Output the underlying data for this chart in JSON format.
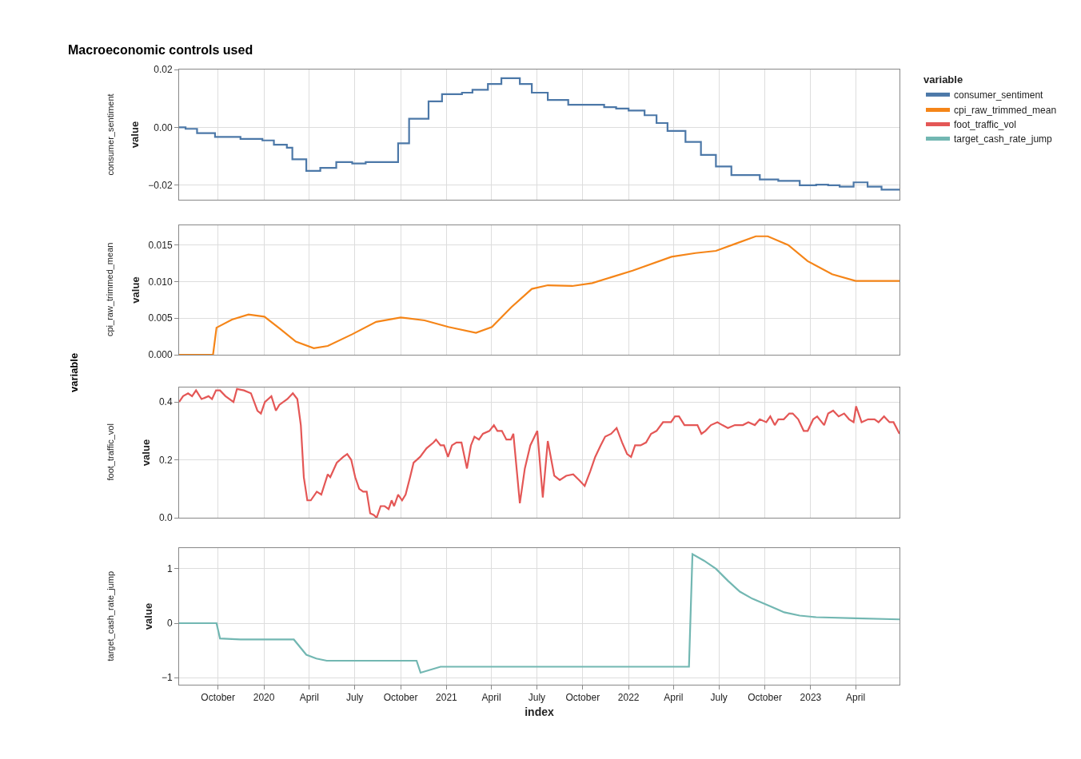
{
  "chart_data": [
    {
      "type": "line",
      "title": "Macroeconomic controls used",
      "ylabel": "value",
      "legend_title": "variable",
      "annotations": [
        "variable"
      ],
      "legend": "top right",
      "grid": true,
      "tick_labels": "y",
      "xlim": [
        "2019-07-15",
        "2023-06-28"
      ],
      "xticks": [
        {
          "value": "2019-10-01",
          "label": null
        },
        {
          "value": "2020-01-01",
          "label": null
        },
        {
          "value": "2020-04-01",
          "label": null
        },
        {
          "value": "2020-07-01",
          "label": null
        },
        {
          "value": "2020-10-01",
          "label": null
        },
        {
          "value": "2021-01-01",
          "label": null
        },
        {
          "value": "2021-04-01",
          "label": null
        },
        {
          "value": "2021-07-01",
          "label": null
        },
        {
          "value": "2021-10-01",
          "label": null
        },
        {
          "value": "2022-01-01",
          "label": null
        },
        {
          "value": "2022-04-01",
          "label": null
        },
        {
          "value": "2022-07-01",
          "label": null
        },
        {
          "value": "2022-10-01",
          "label": null
        },
        {
          "value": "2023-01-01",
          "label": null
        },
        {
          "value": "2023-04-01",
          "label": null
        }
      ],
      "ylim": [
        -0.025,
        0.02
      ],
      "yticks": [
        {
          "value": -0.02,
          "label": "−0.02"
        },
        {
          "value": 0,
          "label": "0.00"
        },
        {
          "value": 0.02,
          "label": "0.02"
        }
      ],
      "series": [
        {
          "name": "consumer_sentiment",
          "type": "step",
          "color": "#4c78a8",
          "x": [
            "2019-07-15",
            "2019-07-28",
            "2019-08-20",
            "2019-09-25",
            "2019-11-15",
            "2019-12-29",
            "2020-01-21",
            "2020-02-16",
            "2020-02-27",
            "2020-03-26",
            "2020-04-23",
            "2020-05-25",
            "2020-06-26",
            "2020-07-23",
            "2020-09-26",
            "2020-10-18",
            "2020-11-26",
            "2020-12-23",
            "2021-02-01",
            "2021-02-22",
            "2021-03-25",
            "2021-04-21",
            "2021-05-28",
            "2021-06-21",
            "2021-07-23",
            "2021-09-02",
            "2021-11-13",
            "2021-12-07",
            "2022-01-01",
            "2022-02-02",
            "2022-02-26",
            "2022-03-20",
            "2022-04-25",
            "2022-05-26",
            "2022-06-25",
            "2022-07-26",
            "2022-09-21",
            "2022-10-28",
            "2022-12-10",
            "2023-01-12",
            "2023-02-05",
            "2023-02-28",
            "2023-03-28",
            "2023-04-25",
            "2023-05-23",
            "2023-06-28"
          ],
          "values": [
            0.0,
            -0.0005,
            -0.002,
            -0.0033,
            -0.004,
            -0.0045,
            -0.006,
            -0.007,
            -0.011,
            -0.015,
            -0.014,
            -0.012,
            -0.0125,
            -0.012,
            -0.0055,
            0.003,
            0.009,
            0.0115,
            0.012,
            0.013,
            0.015,
            0.017,
            0.015,
            0.012,
            0.0095,
            0.0078,
            0.007,
            0.0065,
            0.0058,
            0.0042,
            0.0015,
            -0.0012,
            -0.005,
            -0.0095,
            -0.0135,
            -0.0165,
            -0.018,
            -0.0185,
            -0.02,
            -0.0198,
            -0.02,
            -0.0205,
            -0.019,
            -0.0205,
            -0.0215,
            -0.0215
          ]
        }
      ]
    },
    {
      "type": "line",
      "ylabel": "value",
      "legend": "top right",
      "grid": true,
      "tick_labels": "y",
      "xlim": [
        "2019-07-15",
        "2023-06-28"
      ],
      "xticks": [
        {
          "value": "2019-10-01",
          "label": null
        },
        {
          "value": "2020-01-01",
          "label": null
        },
        {
          "value": "2020-04-01",
          "label": null
        },
        {
          "value": "2020-07-01",
          "label": null
        },
        {
          "value": "2020-10-01",
          "label": null
        },
        {
          "value": "2021-01-01",
          "label": null
        },
        {
          "value": "2021-04-01",
          "label": null
        },
        {
          "value": "2021-07-01",
          "label": null
        },
        {
          "value": "2021-10-01",
          "label": null
        },
        {
          "value": "2022-01-01",
          "label": null
        },
        {
          "value": "2022-04-01",
          "label": null
        },
        {
          "value": "2022-07-01",
          "label": null
        },
        {
          "value": "2022-10-01",
          "label": null
        },
        {
          "value": "2023-01-01",
          "label": null
        },
        {
          "value": "2023-04-01",
          "label": null
        }
      ],
      "ylim": [
        0,
        0.0177
      ],
      "yticks": [
        {
          "value": 0,
          "label": "0.000"
        },
        {
          "value": 0.005,
          "label": "0.005"
        },
        {
          "value": 0.01,
          "label": "0.010"
        },
        {
          "value": 0.015,
          "label": "0.015"
        }
      ],
      "series": [
        {
          "name": "cpi_raw_trimmed_mean",
          "color": "#f58518",
          "x": [
            "2019-07-15",
            "2019-09-21",
            "2019-09-28",
            "2019-10-29",
            "2019-12-01",
            "2020-01-02",
            "2020-02-03",
            "2020-03-05",
            "2020-04-10",
            "2020-05-08",
            "2020-06-26",
            "2020-08-13",
            "2020-10-01",
            "2020-11-18",
            "2021-01-05",
            "2021-03-01",
            "2021-04-02",
            "2021-05-11",
            "2021-06-21",
            "2021-07-23",
            "2021-09-10",
            "2021-10-20",
            "2022-01-09",
            "2022-03-28",
            "2022-05-15",
            "2022-06-25",
            "2022-08-04",
            "2022-09-13",
            "2022-10-07",
            "2022-11-17",
            "2022-12-26",
            "2023-02-13",
            "2023-04-01",
            "2023-06-28"
          ],
          "values": [
            0,
            0,
            0.0037,
            0.0048,
            0.0055,
            0.0052,
            0.0035,
            0.0018,
            0.0009,
            0.0012,
            0.0028,
            0.0045,
            0.0051,
            0.0047,
            0.0038,
            0.003,
            0.0038,
            0.0065,
            0.009,
            0.0095,
            0.0094,
            0.0098,
            0.0115,
            0.0134,
            0.0139,
            0.0142,
            0.0152,
            0.0162,
            0.0162,
            0.015,
            0.0128,
            0.011,
            0.0101,
            0.0101
          ]
        }
      ]
    },
    {
      "type": "line",
      "ylabel": "value",
      "legend": "top right",
      "grid": true,
      "tick_labels": "y",
      "xlim": [
        "2019-07-15",
        "2023-06-28"
      ],
      "xticks": [
        {
          "value": "2019-10-01",
          "label": null
        },
        {
          "value": "2020-01-01",
          "label": null
        },
        {
          "value": "2020-04-01",
          "label": null
        },
        {
          "value": "2020-07-01",
          "label": null
        },
        {
          "value": "2020-10-01",
          "label": null
        },
        {
          "value": "2021-01-01",
          "label": null
        },
        {
          "value": "2021-04-01",
          "label": null
        },
        {
          "value": "2021-07-01",
          "label": null
        },
        {
          "value": "2021-10-01",
          "label": null
        },
        {
          "value": "2022-01-01",
          "label": null
        },
        {
          "value": "2022-04-01",
          "label": null
        },
        {
          "value": "2022-07-01",
          "label": null
        },
        {
          "value": "2022-10-01",
          "label": null
        },
        {
          "value": "2023-01-01",
          "label": null
        },
        {
          "value": "2023-04-01",
          "label": null
        }
      ],
      "ylim": [
        0,
        0.45
      ],
      "yticks": [
        {
          "value": 0,
          "label": "0.0"
        },
        {
          "value": 0.2,
          "label": "0.2"
        },
        {
          "value": 0.4,
          "label": "0.4"
        }
      ],
      "series": [
        {
          "name": "foot_traffic_vol",
          "color": "#e45756",
          "x": [
            "2019-07-15",
            "2019-07-23",
            "2019-08-02",
            "2019-08-10",
            "2019-08-18",
            "2019-08-29",
            "2019-09-12",
            "2019-09-19",
            "2019-09-27",
            "2019-10-05",
            "2019-10-16",
            "2019-11-01",
            "2019-11-08",
            "2019-11-22",
            "2019-12-06",
            "2019-12-19",
            "2019-12-26",
            "2020-01-03",
            "2020-01-16",
            "2020-01-25",
            "2020-02-01",
            "2020-02-17",
            "2020-02-28",
            "2020-03-08",
            "2020-03-15",
            "2020-03-21",
            "2020-03-28",
            "2020-04-04",
            "2020-04-16",
            "2020-04-25",
            "2020-05-08",
            "2020-05-13",
            "2020-05-26",
            "2020-06-08",
            "2020-06-16",
            "2020-06-24",
            "2020-07-02",
            "2020-07-10",
            "2020-07-18",
            "2020-07-25",
            "2020-08-01",
            "2020-08-08",
            "2020-08-14",
            "2020-08-22",
            "2020-08-30",
            "2020-09-07",
            "2020-09-13",
            "2020-09-18",
            "2020-09-26",
            "2020-10-04",
            "2020-10-11",
            "2020-10-20",
            "2020-10-27",
            "2020-11-09",
            "2020-11-22",
            "2020-12-06",
            "2020-12-11",
            "2020-12-20",
            "2020-12-27",
            "2021-01-04",
            "2021-01-12",
            "2021-01-21",
            "2021-01-31",
            "2021-02-11",
            "2021-02-19",
            "2021-02-26",
            "2021-03-07",
            "2021-03-15",
            "2021-03-28",
            "2021-04-06",
            "2021-04-13",
            "2021-04-22",
            "2021-05-01",
            "2021-05-10",
            "2021-05-15",
            "2021-05-28",
            "2021-06-07",
            "2021-06-18",
            "2021-07-02",
            "2021-07-13",
            "2021-07-23",
            "2021-08-05",
            "2021-08-16",
            "2021-08-29",
            "2021-09-12",
            "2021-09-24",
            "2021-10-05",
            "2021-10-16",
            "2021-10-26",
            "2021-11-06",
            "2021-11-15",
            "2021-11-27",
            "2021-12-08",
            "2021-12-19",
            "2021-12-29",
            "2022-01-06",
            "2022-01-14",
            "2022-01-25",
            "2022-02-05",
            "2022-02-15",
            "2022-02-26",
            "2022-03-11",
            "2022-03-27",
            "2022-04-04",
            "2022-04-12",
            "2022-04-23",
            "2022-05-09",
            "2022-05-19",
            "2022-05-27",
            "2022-06-04",
            "2022-06-15",
            "2022-06-28",
            "2022-07-08",
            "2022-07-19",
            "2022-08-02",
            "2022-08-18",
            "2022-08-29",
            "2022-09-11",
            "2022-09-21",
            "2022-10-04",
            "2022-10-12",
            "2022-10-21",
            "2022-10-28",
            "2022-11-08",
            "2022-11-19",
            "2022-11-26",
            "2022-12-07",
            "2022-12-18",
            "2022-12-26",
            "2023-01-06",
            "2023-01-14",
            "2023-01-28",
            "2023-02-05",
            "2023-02-15",
            "2023-02-26",
            "2023-03-09",
            "2023-03-19",
            "2023-03-28",
            "2023-04-02",
            "2023-04-13",
            "2023-04-26",
            "2023-05-09",
            "2023-05-17",
            "2023-05-28",
            "2023-06-08",
            "2023-06-16",
            "2023-06-28"
          ],
          "values": [
            0.4,
            0.42,
            0.43,
            0.42,
            0.44,
            0.41,
            0.42,
            0.41,
            0.44,
            0.44,
            0.42,
            0.4,
            0.445,
            0.44,
            0.43,
            0.37,
            0.36,
            0.4,
            0.42,
            0.37,
            0.39,
            0.41,
            0.43,
            0.41,
            0.32,
            0.14,
            0.06,
            0.06,
            0.09,
            0.08,
            0.15,
            0.14,
            0.19,
            0.21,
            0.22,
            0.2,
            0.14,
            0.1,
            0.09,
            0.09,
            0.015,
            0.01,
            0.0,
            0.04,
            0.04,
            0.03,
            0.06,
            0.04,
            0.08,
            0.06,
            0.08,
            0.14,
            0.19,
            0.21,
            0.24,
            0.26,
            0.27,
            0.25,
            0.25,
            0.21,
            0.25,
            0.26,
            0.26,
            0.17,
            0.25,
            0.28,
            0.27,
            0.29,
            0.3,
            0.32,
            0.3,
            0.3,
            0.27,
            0.27,
            0.29,
            0.05,
            0.17,
            0.25,
            0.3,
            0.07,
            0.265,
            0.145,
            0.13,
            0.145,
            0.15,
            0.13,
            0.11,
            0.16,
            0.21,
            0.25,
            0.28,
            0.29,
            0.31,
            0.26,
            0.22,
            0.21,
            0.25,
            0.25,
            0.26,
            0.29,
            0.3,
            0.33,
            0.33,
            0.35,
            0.35,
            0.32,
            0.32,
            0.32,
            0.29,
            0.3,
            0.32,
            0.33,
            0.32,
            0.31,
            0.32,
            0.32,
            0.33,
            0.32,
            0.34,
            0.33,
            0.35,
            0.32,
            0.34,
            0.34,
            0.36,
            0.36,
            0.34,
            0.3,
            0.3,
            0.34,
            0.35,
            0.32,
            0.36,
            0.37,
            0.35,
            0.36,
            0.34,
            0.33,
            0.385,
            0.33,
            0.34,
            0.34,
            0.33,
            0.35,
            0.33,
            0.33,
            0.29
          ]
        }
      ]
    },
    {
      "type": "line",
      "xlabel": "index",
      "ylabel": "value",
      "legend": "top right",
      "grid": true,
      "xlim": [
        "2019-07-15",
        "2023-06-28"
      ],
      "xticks": [
        {
          "value": "2019-10-01",
          "label": "October"
        },
        {
          "value": "2020-01-01",
          "label": "2020"
        },
        {
          "value": "2020-04-01",
          "label": "April"
        },
        {
          "value": "2020-07-01",
          "label": "July"
        },
        {
          "value": "2020-10-01",
          "label": "October"
        },
        {
          "value": "2021-01-01",
          "label": "2021"
        },
        {
          "value": "2021-04-01",
          "label": "April"
        },
        {
          "value": "2021-07-01",
          "label": "July"
        },
        {
          "value": "2021-10-01",
          "label": "October"
        },
        {
          "value": "2022-01-01",
          "label": "2022"
        },
        {
          "value": "2022-04-01",
          "label": "April"
        },
        {
          "value": "2022-07-01",
          "label": "July"
        },
        {
          "value": "2022-10-01",
          "label": "October"
        },
        {
          "value": "2023-01-01",
          "label": "2023"
        },
        {
          "value": "2023-04-01",
          "label": "April"
        }
      ],
      "ylim": [
        -1.13,
        1.38
      ],
      "yticks": [
        {
          "value": -1,
          "label": "−1"
        },
        {
          "value": 0,
          "label": "0"
        },
        {
          "value": 1,
          "label": "1"
        }
      ],
      "series": [
        {
          "name": "target_cash_rate_jump",
          "color": "#72b7b2",
          "x": [
            "2019-07-15",
            "2019-09-28",
            "2019-10-05",
            "2019-11-15",
            "2020-03-01",
            "2020-03-26",
            "2020-04-15",
            "2020-05-06",
            "2020-11-02",
            "2020-11-10",
            "2020-12-20",
            "2022-05-02",
            "2022-05-09",
            "2022-06-01",
            "2022-06-25",
            "2022-07-19",
            "2022-08-12",
            "2022-09-06",
            "2022-10-07",
            "2022-11-09",
            "2022-12-10",
            "2023-01-12",
            "2023-04-01",
            "2023-06-28"
          ],
          "values": [
            0,
            0,
            -0.28,
            -0.3,
            -0.3,
            -0.58,
            -0.65,
            -0.69,
            -0.69,
            -0.91,
            -0.8,
            -0.8,
            1.27,
            1.15,
            1.0,
            0.78,
            0.58,
            0.45,
            0.33,
            0.2,
            0.14,
            0.11,
            0.09,
            0.07
          ]
        }
      ]
    }
  ]
}
